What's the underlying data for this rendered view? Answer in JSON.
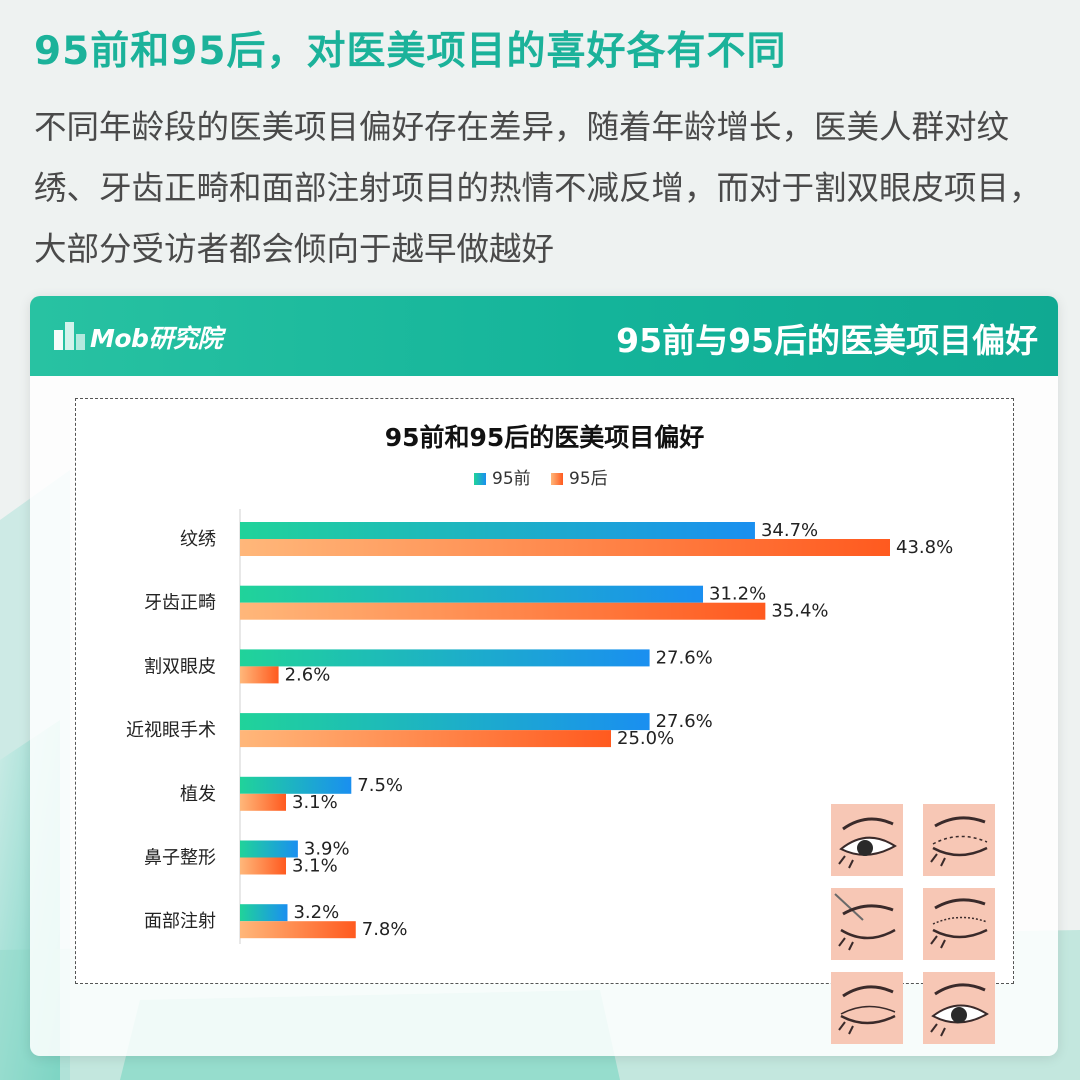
{
  "page": {
    "headline": "95前和95后，对医美项目的喜好各有不同",
    "intro": "不同年龄段的医美项目偏好存在差异，随着年龄增长，医美人群对纹绣、牙齿正畸和面部注射项目的热情不减反增，而对于割双眼皮项目，大部分受访者都会倾向于越早做越好"
  },
  "card": {
    "logo_text": "Mob研究院",
    "title": "95前与95后的医美项目偏好"
  },
  "colors": {
    "accent": "#1bb29a",
    "series_95qian_start": "#20d39a",
    "series_95qian_end": "#1a8ff0",
    "series_95hou_start": "#ffb77a",
    "series_95hou_end": "#ff5a1f"
  },
  "illustration": {
    "icon": "eyelid-surgery-steps-icon",
    "panels": 6
  },
  "chart_data": {
    "type": "bar",
    "orientation": "horizontal",
    "title": "95前和95后的医美项目偏好",
    "categories": [
      "纹绣",
      "牙齿正畸",
      "割双眼皮",
      "近视眼手术",
      "植发",
      "鼻子整形",
      "面部注射"
    ],
    "series": [
      {
        "name": "95前",
        "values": [
          34.7,
          31.2,
          27.6,
          27.6,
          7.5,
          3.9,
          3.2
        ]
      },
      {
        "name": "95后",
        "values": [
          43.8,
          35.4,
          2.6,
          25.0,
          3.1,
          3.1,
          7.8
        ]
      }
    ],
    "value_labels": [
      [
        "34.7%",
        "31.2%",
        "27.6%",
        "27.6%",
        "7.5%",
        "3.9%",
        "3.2%"
      ],
      [
        "43.8%",
        "35.4%",
        "2.6%",
        "25.0%",
        "3.1%",
        "3.1%",
        "7.8%"
      ]
    ],
    "unit": "%",
    "xlim": [
      0,
      45
    ],
    "legend": "top-center",
    "grid": false
  }
}
